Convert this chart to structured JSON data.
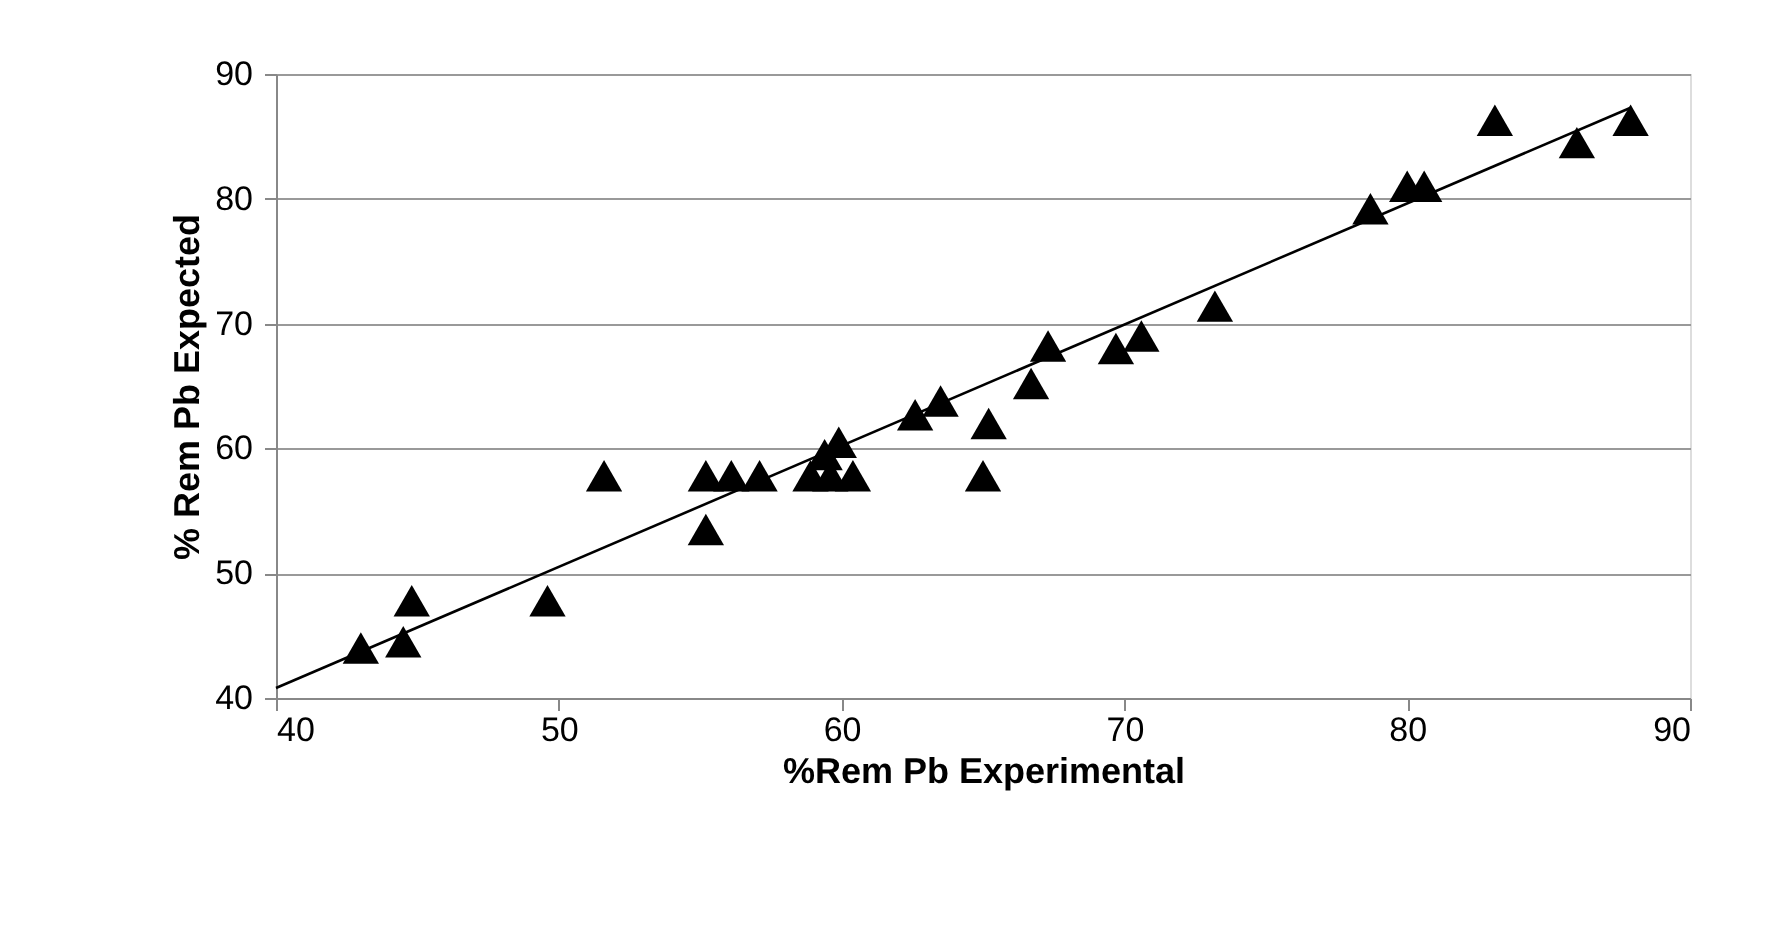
{
  "chart_data": {
    "type": "scatter",
    "xlabel": "%Rem Pb Experimental",
    "ylabel": "% Rem Pb Expected",
    "xlim": [
      40,
      90
    ],
    "xticks": [
      40,
      50,
      60,
      70,
      80,
      90
    ],
    "ylim": [
      40,
      90
    ],
    "yticks": [
      40,
      50,
      60,
      70,
      80,
      90
    ],
    "grid": "y",
    "marker": "triangle",
    "series": [
      {
        "color": "#000000",
        "x": [
          43,
          44.5,
          44.8,
          49.6,
          51.6,
          55.2,
          55.2,
          56.1,
          57.1,
          58.9,
          59.4,
          59.9,
          60.4,
          59.6,
          62.6,
          63.5,
          65.0,
          65.2,
          66.7,
          67.3,
          69.7,
          70.6,
          73.2,
          78.7,
          80.0,
          80.6,
          83.1,
          86.0,
          87.9
        ],
        "values": [
          44,
          44.5,
          47.8,
          47.8,
          57.8,
          53.5,
          57.8,
          57.8,
          57.8,
          57.8,
          59.5,
          60.5,
          57.8,
          57.8,
          62.7,
          63.8,
          57.8,
          62.0,
          65.2,
          68.2,
          68.0,
          69.0,
          71.4,
          79.2,
          81.0,
          81.0,
          86.3,
          84.5,
          86.3
        ]
      },
      {
        "type": "line",
        "color": "#000000",
        "line_style": "solid",
        "marker": "none",
        "x": [
          40,
          87.9
        ],
        "values": [
          40.8,
          87.3
        ]
      }
    ]
  }
}
